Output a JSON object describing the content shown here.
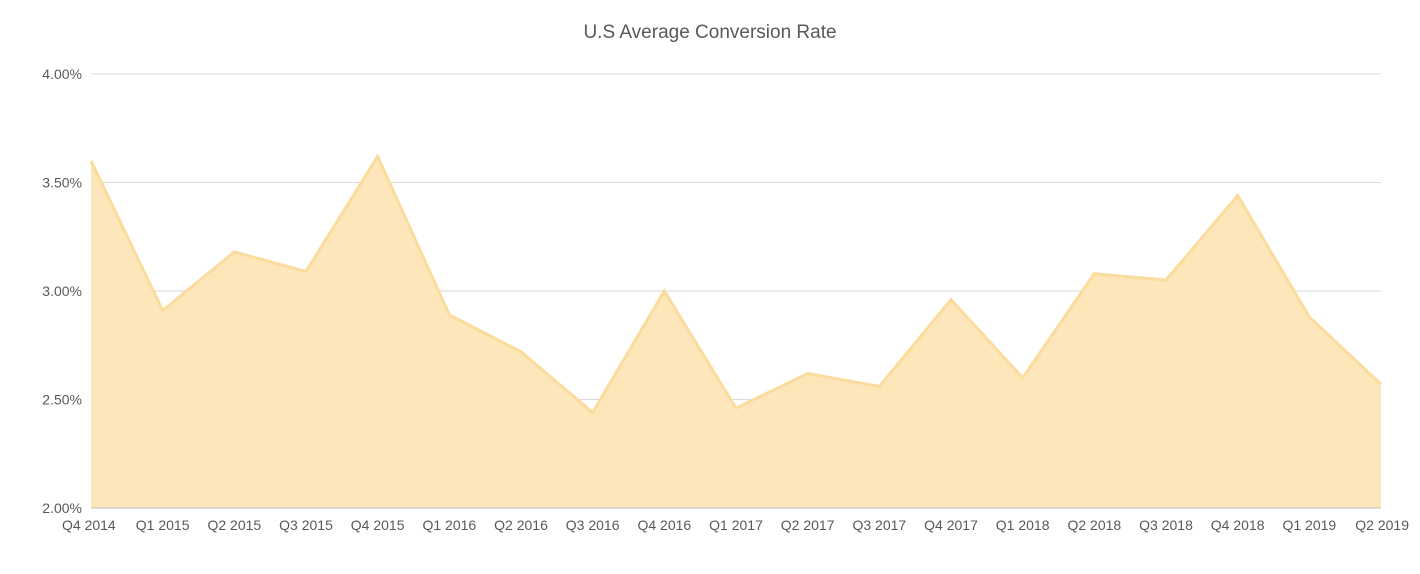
{
  "chart_data": {
    "type": "area",
    "title": "U.S Average Conversion Rate",
    "xlabel": "",
    "ylabel": "",
    "categories": [
      "Q4 2014",
      "Q1 2015",
      "Q2 2015",
      "Q3 2015",
      "Q4 2015",
      "Q1 2016",
      "Q2 2016",
      "Q3 2016",
      "Q4 2016",
      "Q1 2017",
      "Q2 2017",
      "Q3 2017",
      "Q4 2017",
      "Q1 2018",
      "Q2 2018",
      "Q3 2018",
      "Q4 2018",
      "Q1 2019",
      "Q2 2019"
    ],
    "series": [
      {
        "values": [
          3.6,
          2.91,
          3.18,
          3.09,
          3.62,
          2.89,
          2.72,
          2.44,
          3.0,
          2.46,
          2.62,
          2.56,
          2.96,
          2.6,
          3.08,
          3.05,
          3.44,
          2.88,
          2.57
        ]
      }
    ],
    "ylim": [
      2.0,
      4.0
    ],
    "yticks": [
      2.0,
      2.5,
      3.0,
      3.5,
      4.0
    ],
    "ytick_labels": [
      "2.00%",
      "2.50%",
      "3.00%",
      "3.50%",
      "4.00%"
    ],
    "grid": true,
    "legend": "none",
    "colors": {
      "area_fill": "#FCE6BA",
      "area_line": "#FBDC9C",
      "grid": "#D9D9D9",
      "axis": "#BFBFBF",
      "text": "#595959"
    }
  }
}
